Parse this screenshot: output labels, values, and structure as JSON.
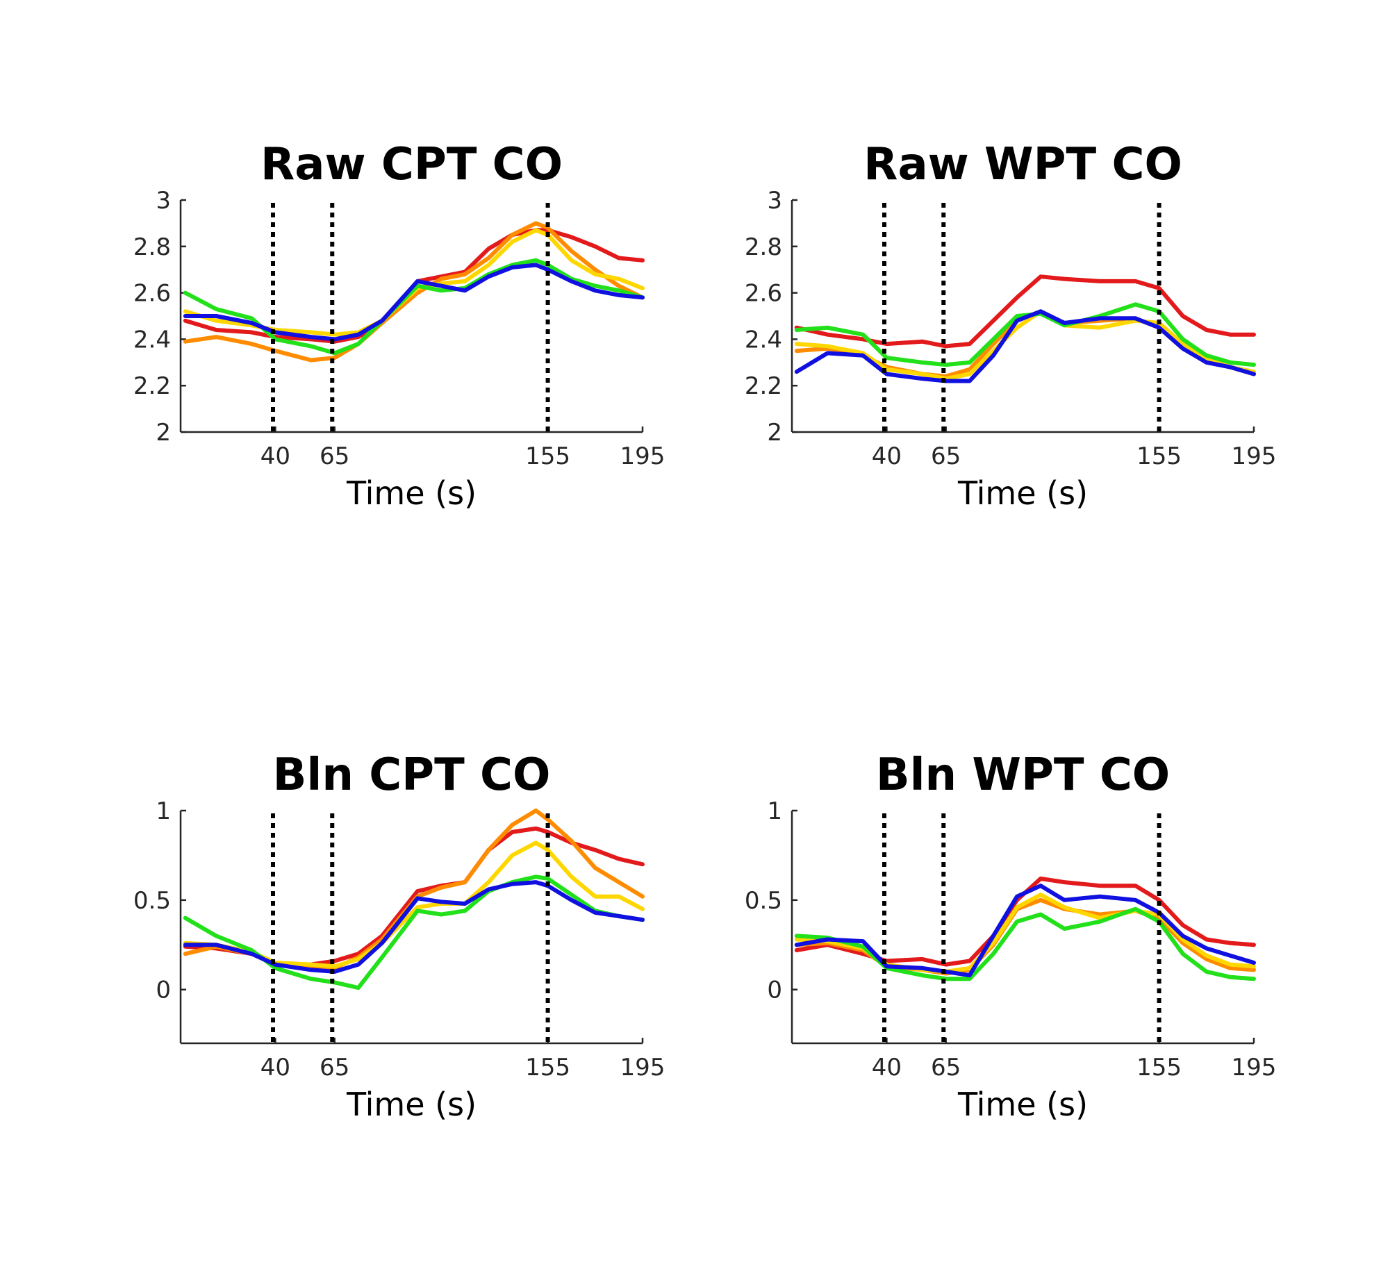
{
  "chart_data": [
    {
      "type": "line",
      "title": "Raw CPT CO",
      "xlabel": "Time (s)",
      "ylabel": "",
      "xlim": [
        0,
        195
      ],
      "ylim": [
        2,
        3
      ],
      "xticks": [
        40,
        65,
        155,
        195
      ],
      "xtick_labels": [
        "40",
        "65",
        "155",
        "195"
      ],
      "yticks": [
        2,
        2.2,
        2.4,
        2.6,
        2.8,
        3
      ],
      "ytick_labels": [
        "2",
        "2.2",
        "2.4",
        "2.6",
        "2.8",
        "3"
      ],
      "vlines": [
        39,
        64,
        155
      ],
      "x": [
        2,
        15,
        30,
        40,
        55,
        65,
        75,
        85,
        100,
        110,
        120,
        130,
        140,
        150,
        155,
        165,
        175,
        185,
        195
      ],
      "series": [
        {
          "name": "red",
          "color": "#e31a1c",
          "values": [
            2.48,
            2.44,
            2.43,
            2.41,
            2.4,
            2.39,
            2.41,
            2.47,
            2.65,
            2.67,
            2.69,
            2.79,
            2.85,
            2.87,
            2.87,
            2.84,
            2.8,
            2.75,
            2.74
          ]
        },
        {
          "name": "orange",
          "color": "#ff8c00",
          "values": [
            2.39,
            2.41,
            2.38,
            2.35,
            2.31,
            2.32,
            2.38,
            2.47,
            2.6,
            2.66,
            2.68,
            2.75,
            2.85,
            2.9,
            2.88,
            2.78,
            2.7,
            2.63,
            2.58
          ]
        },
        {
          "name": "yellow",
          "color": "#ffd700",
          "values": [
            2.52,
            2.48,
            2.46,
            2.44,
            2.43,
            2.42,
            2.43,
            2.48,
            2.62,
            2.64,
            2.65,
            2.72,
            2.82,
            2.87,
            2.85,
            2.74,
            2.68,
            2.66,
            2.62
          ]
        },
        {
          "name": "green",
          "color": "#22e01a",
          "values": [
            2.6,
            2.53,
            2.49,
            2.4,
            2.37,
            2.34,
            2.38,
            2.48,
            2.63,
            2.61,
            2.62,
            2.68,
            2.72,
            2.74,
            2.72,
            2.66,
            2.63,
            2.61,
            2.58
          ]
        },
        {
          "name": "blue",
          "color": "#1010e0",
          "values": [
            2.5,
            2.5,
            2.47,
            2.43,
            2.41,
            2.4,
            2.42,
            2.48,
            2.65,
            2.63,
            2.61,
            2.67,
            2.71,
            2.72,
            2.7,
            2.65,
            2.61,
            2.59,
            2.58
          ]
        }
      ]
    },
    {
      "type": "line",
      "title": "Raw WPT CO",
      "xlabel": "Time (s)",
      "ylabel": "",
      "xlim": [
        0,
        195
      ],
      "ylim": [
        2,
        3
      ],
      "xticks": [
        40,
        65,
        155,
        195
      ],
      "xtick_labels": [
        "40",
        "65",
        "155",
        "195"
      ],
      "yticks": [
        2,
        2.2,
        2.4,
        2.6,
        2.8,
        3
      ],
      "ytick_labels": [
        "2",
        "2.2",
        "2.4",
        "2.6",
        "2.8",
        "3"
      ],
      "vlines": [
        39,
        64,
        155
      ],
      "x": [
        2,
        15,
        30,
        40,
        55,
        65,
        75,
        85,
        95,
        105,
        115,
        130,
        145,
        155,
        165,
        175,
        185,
        195
      ],
      "series": [
        {
          "name": "red",
          "color": "#e31a1c",
          "values": [
            2.45,
            2.42,
            2.4,
            2.38,
            2.39,
            2.37,
            2.38,
            2.48,
            2.58,
            2.67,
            2.66,
            2.65,
            2.65,
            2.62,
            2.5,
            2.44,
            2.42,
            2.42
          ]
        },
        {
          "name": "orange",
          "color": "#ff8c00",
          "values": [
            2.35,
            2.36,
            2.33,
            2.28,
            2.25,
            2.24,
            2.27,
            2.38,
            2.48,
            2.52,
            2.47,
            2.48,
            2.49,
            2.45,
            2.36,
            2.31,
            2.28,
            2.25
          ]
        },
        {
          "name": "yellow",
          "color": "#ffd700",
          "values": [
            2.38,
            2.37,
            2.34,
            2.27,
            2.25,
            2.23,
            2.25,
            2.35,
            2.45,
            2.52,
            2.46,
            2.45,
            2.48,
            2.47,
            2.38,
            2.32,
            2.28,
            2.26
          ]
        },
        {
          "name": "green",
          "color": "#22e01a",
          "values": [
            2.44,
            2.45,
            2.42,
            2.32,
            2.3,
            2.29,
            2.3,
            2.4,
            2.5,
            2.51,
            2.46,
            2.5,
            2.55,
            2.52,
            2.4,
            2.33,
            2.3,
            2.29
          ]
        },
        {
          "name": "blue",
          "color": "#1010e0",
          "values": [
            2.26,
            2.34,
            2.33,
            2.25,
            2.23,
            2.22,
            2.22,
            2.33,
            2.48,
            2.52,
            2.47,
            2.49,
            2.49,
            2.45,
            2.36,
            2.3,
            2.28,
            2.25
          ]
        }
      ]
    },
    {
      "type": "line",
      "title": "Bln CPT CO",
      "xlabel": "Time (s)",
      "ylabel": "",
      "xlim": [
        0,
        195
      ],
      "ylim": [
        -0.3,
        1
      ],
      "xticks": [
        40,
        65,
        155,
        195
      ],
      "xtick_labels": [
        "40",
        "65",
        "155",
        "195"
      ],
      "yticks": [
        0,
        0.5,
        1
      ],
      "ytick_labels": [
        "0",
        "0.5",
        "1"
      ],
      "vlines": [
        39,
        64,
        155
      ],
      "x": [
        2,
        15,
        30,
        40,
        55,
        65,
        75,
        85,
        100,
        110,
        120,
        130,
        140,
        150,
        155,
        165,
        175,
        185,
        195
      ],
      "series": [
        {
          "name": "red",
          "color": "#e31a1c",
          "values": [
            0.24,
            0.23,
            0.2,
            0.14,
            0.14,
            0.16,
            0.2,
            0.3,
            0.55,
            0.58,
            0.6,
            0.78,
            0.88,
            0.9,
            0.88,
            0.82,
            0.78,
            0.73,
            0.7
          ]
        },
        {
          "name": "orange",
          "color": "#ff8c00",
          "values": [
            0.2,
            0.24,
            0.2,
            0.15,
            0.12,
            0.12,
            0.18,
            0.28,
            0.52,
            0.57,
            0.6,
            0.78,
            0.92,
            1.0,
            0.95,
            0.83,
            0.68,
            0.6,
            0.52
          ]
        },
        {
          "name": "yellow",
          "color": "#ffd700",
          "values": [
            0.26,
            0.25,
            0.21,
            0.15,
            0.14,
            0.13,
            0.17,
            0.26,
            0.46,
            0.48,
            0.48,
            0.6,
            0.75,
            0.82,
            0.78,
            0.63,
            0.52,
            0.52,
            0.45
          ]
        },
        {
          "name": "green",
          "color": "#22e01a",
          "values": [
            0.4,
            0.3,
            0.22,
            0.12,
            0.06,
            0.04,
            0.01,
            0.18,
            0.44,
            0.42,
            0.44,
            0.55,
            0.6,
            0.63,
            0.62,
            0.53,
            0.44,
            0.41,
            0.39
          ]
        },
        {
          "name": "blue",
          "color": "#1010e0",
          "values": [
            0.25,
            0.25,
            0.2,
            0.14,
            0.11,
            0.1,
            0.14,
            0.26,
            0.51,
            0.49,
            0.48,
            0.56,
            0.59,
            0.6,
            0.58,
            0.5,
            0.43,
            0.41,
            0.39
          ]
        }
      ]
    },
    {
      "type": "line",
      "title": "Bln WPT CO",
      "xlabel": "Time (s)",
      "ylabel": "",
      "xlim": [
        0,
        195
      ],
      "ylim": [
        -0.3,
        1
      ],
      "xticks": [
        40,
        65,
        155,
        195
      ],
      "xtick_labels": [
        "40",
        "65",
        "155",
        "195"
      ],
      "yticks": [
        0,
        0.5,
        1
      ],
      "ytick_labels": [
        "0",
        "0.5",
        "1"
      ],
      "vlines": [
        39,
        64,
        155
      ],
      "x": [
        2,
        15,
        30,
        40,
        55,
        65,
        75,
        85,
        95,
        105,
        115,
        130,
        145,
        155,
        165,
        175,
        185,
        195
      ],
      "series": [
        {
          "name": "red",
          "color": "#e31a1c",
          "values": [
            0.22,
            0.25,
            0.2,
            0.16,
            0.17,
            0.14,
            0.16,
            0.3,
            0.5,
            0.62,
            0.6,
            0.58,
            0.58,
            0.5,
            0.36,
            0.28,
            0.26,
            0.25
          ]
        },
        {
          "name": "orange",
          "color": "#ff8c00",
          "values": [
            0.25,
            0.26,
            0.22,
            0.13,
            0.11,
            0.09,
            0.11,
            0.25,
            0.45,
            0.5,
            0.45,
            0.42,
            0.44,
            0.4,
            0.26,
            0.17,
            0.12,
            0.11
          ]
        },
        {
          "name": "yellow",
          "color": "#ffd700",
          "values": [
            0.28,
            0.27,
            0.23,
            0.14,
            0.11,
            0.1,
            0.12,
            0.26,
            0.46,
            0.53,
            0.46,
            0.4,
            0.44,
            0.42,
            0.28,
            0.19,
            0.14,
            0.13
          ]
        },
        {
          "name": "green",
          "color": "#22e01a",
          "values": [
            0.3,
            0.29,
            0.24,
            0.12,
            0.08,
            0.06,
            0.06,
            0.2,
            0.38,
            0.42,
            0.34,
            0.38,
            0.45,
            0.38,
            0.2,
            0.1,
            0.07,
            0.06
          ]
        },
        {
          "name": "blue",
          "color": "#1010e0",
          "values": [
            0.25,
            0.28,
            0.27,
            0.13,
            0.12,
            0.1,
            0.08,
            0.3,
            0.52,
            0.58,
            0.5,
            0.52,
            0.5,
            0.43,
            0.3,
            0.23,
            0.19,
            0.15
          ]
        }
      ]
    }
  ]
}
